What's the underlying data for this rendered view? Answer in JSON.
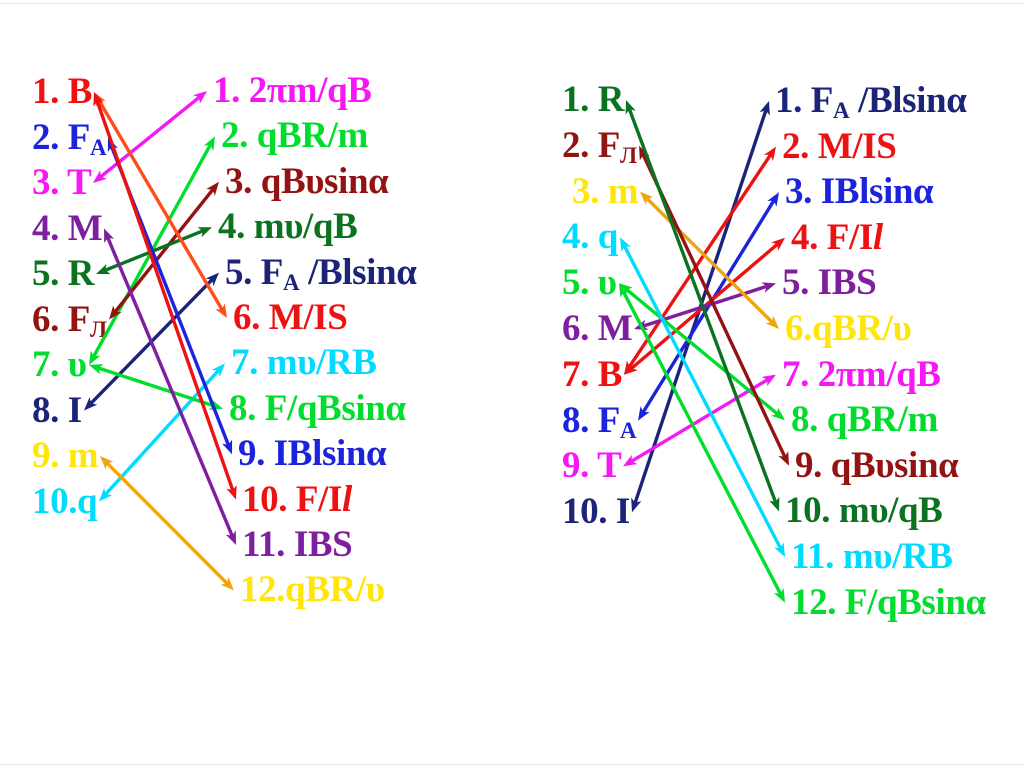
{
  "slide": {
    "background": "#ffffff"
  },
  "palette": {
    "red": "#ee1111",
    "orangered": "#ff4d1a",
    "blue": "#1b24dc",
    "magenta": "#f616f6",
    "purple": "#7d1f9e",
    "darkgreen": "#0b731f",
    "darkred": "#931313",
    "green": "#00dd2d",
    "navy": "#1b2478",
    "yellow": "#ffe606",
    "cyan": "#00dcff",
    "orange": "#f2a40e"
  },
  "blocks": [
    {
      "name": "left-matching-block",
      "quantities": [
        {
          "id": "B",
          "color": "red",
          "segments": [
            {
              "t": "1. B"
            }
          ]
        },
        {
          "id": "FA",
          "color": "blue",
          "segments": [
            {
              "t": "2. F"
            },
            {
              "t": "A",
              "sub": true
            }
          ]
        },
        {
          "id": "T",
          "color": "magenta",
          "segments": [
            {
              "t": "3. T"
            }
          ]
        },
        {
          "id": "M",
          "color": "purple",
          "segments": [
            {
              "t": "4. M"
            }
          ]
        },
        {
          "id": "R",
          "color": "darkgreen",
          "segments": [
            {
              "t": "5. R"
            }
          ]
        },
        {
          "id": "FL",
          "color": "darkred",
          "segments": [
            {
              "t": "6. F"
            },
            {
              "t": "Л",
              "sub": true
            }
          ]
        },
        {
          "id": "v",
          "color": "green",
          "segments": [
            {
              "t": "7. υ"
            }
          ]
        },
        {
          "id": "I",
          "color": "navy",
          "segments": [
            {
              "t": "8. I"
            }
          ]
        },
        {
          "id": "m",
          "color": "yellow",
          "segments": [
            {
              "t": "9. m"
            }
          ]
        },
        {
          "id": "q",
          "color": "cyan",
          "segments": [
            {
              "t": "10.q"
            }
          ]
        }
      ],
      "formulas": [
        {
          "id": "f1",
          "color": "magenta",
          "segments": [
            {
              "t": "1. 2πm/qB"
            }
          ]
        },
        {
          "id": "f2",
          "color": "green",
          "segments": [
            {
              "t": "2. qBR/m"
            }
          ]
        },
        {
          "id": "f3",
          "color": "darkred",
          "segments": [
            {
              "t": "3. qBυsinα"
            }
          ]
        },
        {
          "id": "f4",
          "color": "darkgreen",
          "segments": [
            {
              "t": "4. mυ/qB"
            }
          ]
        },
        {
          "id": "f5",
          "color": "navy",
          "segments": [
            {
              "t": "5. F"
            },
            {
              "t": "A",
              "sub": true
            },
            {
              "t": " /Blsinα"
            }
          ]
        },
        {
          "id": "f6",
          "color": "red",
          "segments": [
            {
              "t": "6. M/IS"
            }
          ]
        },
        {
          "id": "f7",
          "color": "cyan",
          "segments": [
            {
              "t": "7. mυ/RB"
            }
          ]
        },
        {
          "id": "f8",
          "color": "green",
          "segments": [
            {
              "t": "8. F/qBsinα"
            }
          ]
        },
        {
          "id": "f9",
          "color": "blue",
          "segments": [
            {
              "t": "9. IBlsinα"
            }
          ]
        },
        {
          "id": "f10",
          "color": "red",
          "segments": [
            {
              "t": "10. F/I"
            },
            {
              "t": "l",
              "italic": true
            }
          ]
        },
        {
          "id": "f11",
          "color": "purple",
          "segments": [
            {
              "t": "11. IBS"
            }
          ]
        },
        {
          "id": "f12",
          "color": "yellow",
          "segments": [
            {
              "t": "12.qBR/υ"
            }
          ]
        }
      ],
      "connections": [
        {
          "from": "T",
          "to": "f1",
          "color": "magenta"
        },
        {
          "from": "v",
          "to": "f2",
          "color": "green"
        },
        {
          "from": "FL",
          "to": "f3",
          "color": "darkred"
        },
        {
          "from": "R",
          "to": "f4",
          "color": "darkgreen"
        },
        {
          "from": "I",
          "to": "f5",
          "color": "navy"
        },
        {
          "from": "B",
          "to": "f6",
          "color": "orangered"
        },
        {
          "from": "q",
          "to": "f7",
          "color": "cyan"
        },
        {
          "from": "v",
          "to": "f8",
          "color": "green"
        },
        {
          "from": "FA",
          "to": "f9",
          "color": "blue"
        },
        {
          "from": "B",
          "to": "f10",
          "color": "red"
        },
        {
          "from": "M",
          "to": "f11",
          "color": "purple"
        },
        {
          "from": "m",
          "to": "f12",
          "color": "orange"
        }
      ]
    },
    {
      "name": "right-matching-block",
      "quantities": [
        {
          "id": "R",
          "color": "darkgreen",
          "segments": [
            {
              "t": "1. R"
            }
          ]
        },
        {
          "id": "FL",
          "color": "darkred",
          "segments": [
            {
              "t": "2. F"
            },
            {
              "t": "Л",
              "sub": true
            }
          ]
        },
        {
          "id": "m",
          "color": "yellow",
          "segments": [
            {
              "t": "3. m"
            }
          ]
        },
        {
          "id": "q",
          "color": "cyan",
          "segments": [
            {
              "t": "4. q"
            }
          ]
        },
        {
          "id": "v",
          "color": "green",
          "segments": [
            {
              "t": "5. υ"
            }
          ]
        },
        {
          "id": "M",
          "color": "purple",
          "segments": [
            {
              "t": "6. M"
            }
          ]
        },
        {
          "id": "B",
          "color": "red",
          "segments": [
            {
              "t": "7. B"
            }
          ]
        },
        {
          "id": "FA",
          "color": "blue",
          "segments": [
            {
              "t": "8. F"
            },
            {
              "t": "A",
              "sub": true
            }
          ]
        },
        {
          "id": "T",
          "color": "magenta",
          "segments": [
            {
              "t": "9. T"
            }
          ]
        },
        {
          "id": "I",
          "color": "navy",
          "segments": [
            {
              "t": "10. I"
            }
          ]
        }
      ],
      "formulas": [
        {
          "id": "f1",
          "color": "navy",
          "segments": [
            {
              "t": "1. F"
            },
            {
              "t": "A",
              "sub": true
            },
            {
              "t": " /Blsinα"
            }
          ]
        },
        {
          "id": "f2",
          "color": "red",
          "segments": [
            {
              "t": "2. M/IS"
            }
          ]
        },
        {
          "id": "f3",
          "color": "blue",
          "segments": [
            {
              "t": "3. IBlsinα"
            }
          ]
        },
        {
          "id": "f4",
          "color": "red",
          "segments": [
            {
              "t": "4. F/I"
            },
            {
              "t": "l",
              "italic": true
            }
          ]
        },
        {
          "id": "f5",
          "color": "purple",
          "segments": [
            {
              "t": "5. IBS"
            }
          ]
        },
        {
          "id": "f6",
          "color": "yellow",
          "segments": [
            {
              "t": "6.qBR/υ"
            }
          ]
        },
        {
          "id": "f7",
          "color": "magenta",
          "segments": [
            {
              "t": "7. 2πm/qB"
            }
          ]
        },
        {
          "id": "f8",
          "color": "green",
          "segments": [
            {
              "t": "8. qBR/m"
            }
          ]
        },
        {
          "id": "f9",
          "color": "darkred",
          "segments": [
            {
              "t": "9. qBυsinα"
            }
          ]
        },
        {
          "id": "f10",
          "color": "darkgreen",
          "segments": [
            {
              "t": "10. mυ/qB"
            }
          ]
        },
        {
          "id": "f11",
          "color": "cyan",
          "segments": [
            {
              "t": "11. mυ/RB"
            }
          ]
        },
        {
          "id": "f12",
          "color": "green",
          "segments": [
            {
              "t": "12. F/qBsinα"
            }
          ]
        }
      ],
      "connections": [
        {
          "from": "I",
          "to": "f1",
          "color": "navy"
        },
        {
          "from": "B",
          "to": "f2",
          "color": "red"
        },
        {
          "from": "FA",
          "to": "f3",
          "color": "blue"
        },
        {
          "from": "B",
          "to": "f4",
          "color": "red"
        },
        {
          "from": "M",
          "to": "f5",
          "color": "purple"
        },
        {
          "from": "m",
          "to": "f6",
          "color": "orange"
        },
        {
          "from": "T",
          "to": "f7",
          "color": "magenta"
        },
        {
          "from": "v",
          "to": "f8",
          "color": "green"
        },
        {
          "from": "FL",
          "to": "f9",
          "color": "darkred"
        },
        {
          "from": "R",
          "to": "f10",
          "color": "darkgreen"
        },
        {
          "from": "q",
          "to": "f11",
          "color": "cyan"
        },
        {
          "from": "v",
          "to": "f12",
          "color": "green"
        }
      ]
    }
  ]
}
